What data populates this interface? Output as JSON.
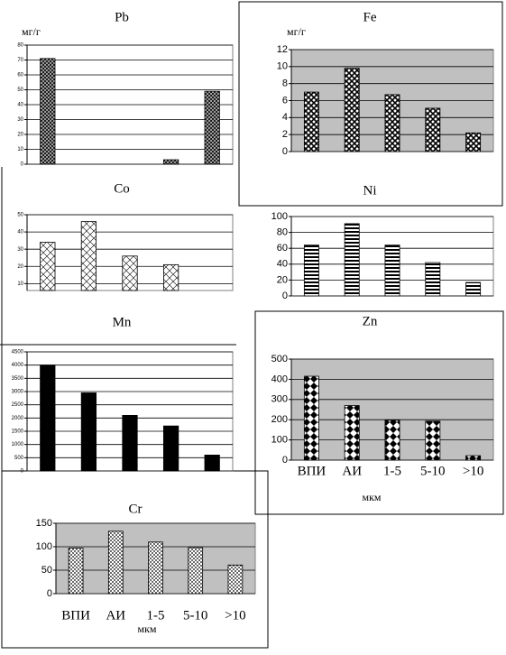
{
  "chart_data": [
    {
      "type": "bar",
      "title": "Pb",
      "y_label": "мг/г",
      "categories": [
        null,
        null,
        null,
        null,
        null
      ],
      "values": [
        71,
        null,
        null,
        3,
        49
      ],
      "ylim": [
        0,
        80
      ],
      "yticks": [
        0,
        10,
        20,
        30,
        40,
        50,
        60,
        70,
        80
      ],
      "grid": true,
      "pattern": "crosshatch",
      "color": "#000000",
      "background": "#ffffff"
    },
    {
      "type": "bar",
      "title": "Fe",
      "y_label": "мг/г",
      "categories": [
        null,
        null,
        null,
        null,
        null
      ],
      "values": [
        7,
        9.8,
        6.7,
        5.1,
        2.2
      ],
      "ylim": [
        0,
        12
      ],
      "yticks": [
        0,
        2,
        4,
        6,
        8,
        10,
        12
      ],
      "grid": true,
      "pattern": "checker",
      "color": "#000000",
      "background": "#c0c0c0"
    },
    {
      "type": "bar",
      "title": "Co",
      "categories": [
        null,
        null,
        null,
        null,
        null
      ],
      "values": [
        34,
        46,
        26,
        21,
        null
      ],
      "ylim": [
        6,
        50
      ],
      "yticks": [
        10,
        20,
        30,
        40,
        50
      ],
      "grid": true,
      "pattern": "diag",
      "color": "#000000",
      "background": "#ffffff"
    },
    {
      "type": "bar",
      "title": "Ni",
      "categories": [
        null,
        null,
        null,
        null,
        null
      ],
      "values": [
        64,
        91,
        64,
        42,
        17
      ],
      "ylim": [
        0,
        100
      ],
      "yticks": [
        0,
        20,
        40,
        60,
        80,
        100
      ],
      "grid": true,
      "pattern": "hstripe",
      "color": "#000000",
      "background": "#ffffff"
    },
    {
      "type": "bar",
      "title": "Mn",
      "categories": [
        null,
        null,
        null,
        null,
        null
      ],
      "values": [
        4000,
        2950,
        2100,
        1700,
        600
      ],
      "ylim": [
        0,
        4500
      ],
      "yticks": [
        0,
        500,
        1000,
        1500,
        2000,
        2500,
        3000,
        3500,
        4000,
        4500
      ],
      "grid": true,
      "pattern": "solid",
      "color": "#000000",
      "background": "#ffffff"
    },
    {
      "type": "bar",
      "title": "Zn",
      "x_label": "мкм",
      "categories": [
        "ВПИ",
        "АИ",
        "1-5",
        "5-10",
        ">10"
      ],
      "values": [
        415,
        270,
        197,
        193,
        22
      ],
      "ylim": [
        0,
        500
      ],
      "yticks": [
        0,
        100,
        200,
        300,
        400,
        500
      ],
      "grid": true,
      "pattern": "diamond",
      "color": "#000000",
      "background": "#c0c0c0"
    },
    {
      "type": "bar",
      "title": "Cr",
      "x_label": "мкм",
      "categories": [
        "ВПИ",
        "АИ",
        "1-5",
        "5-10",
        ">10"
      ],
      "values": [
        97,
        133,
        110,
        98,
        61
      ],
      "ylim": [
        0,
        150
      ],
      "yticks": [
        0,
        50,
        100,
        150
      ],
      "grid": true,
      "pattern": "dots",
      "color": "#000000",
      "background": "#c0c0c0"
    }
  ]
}
